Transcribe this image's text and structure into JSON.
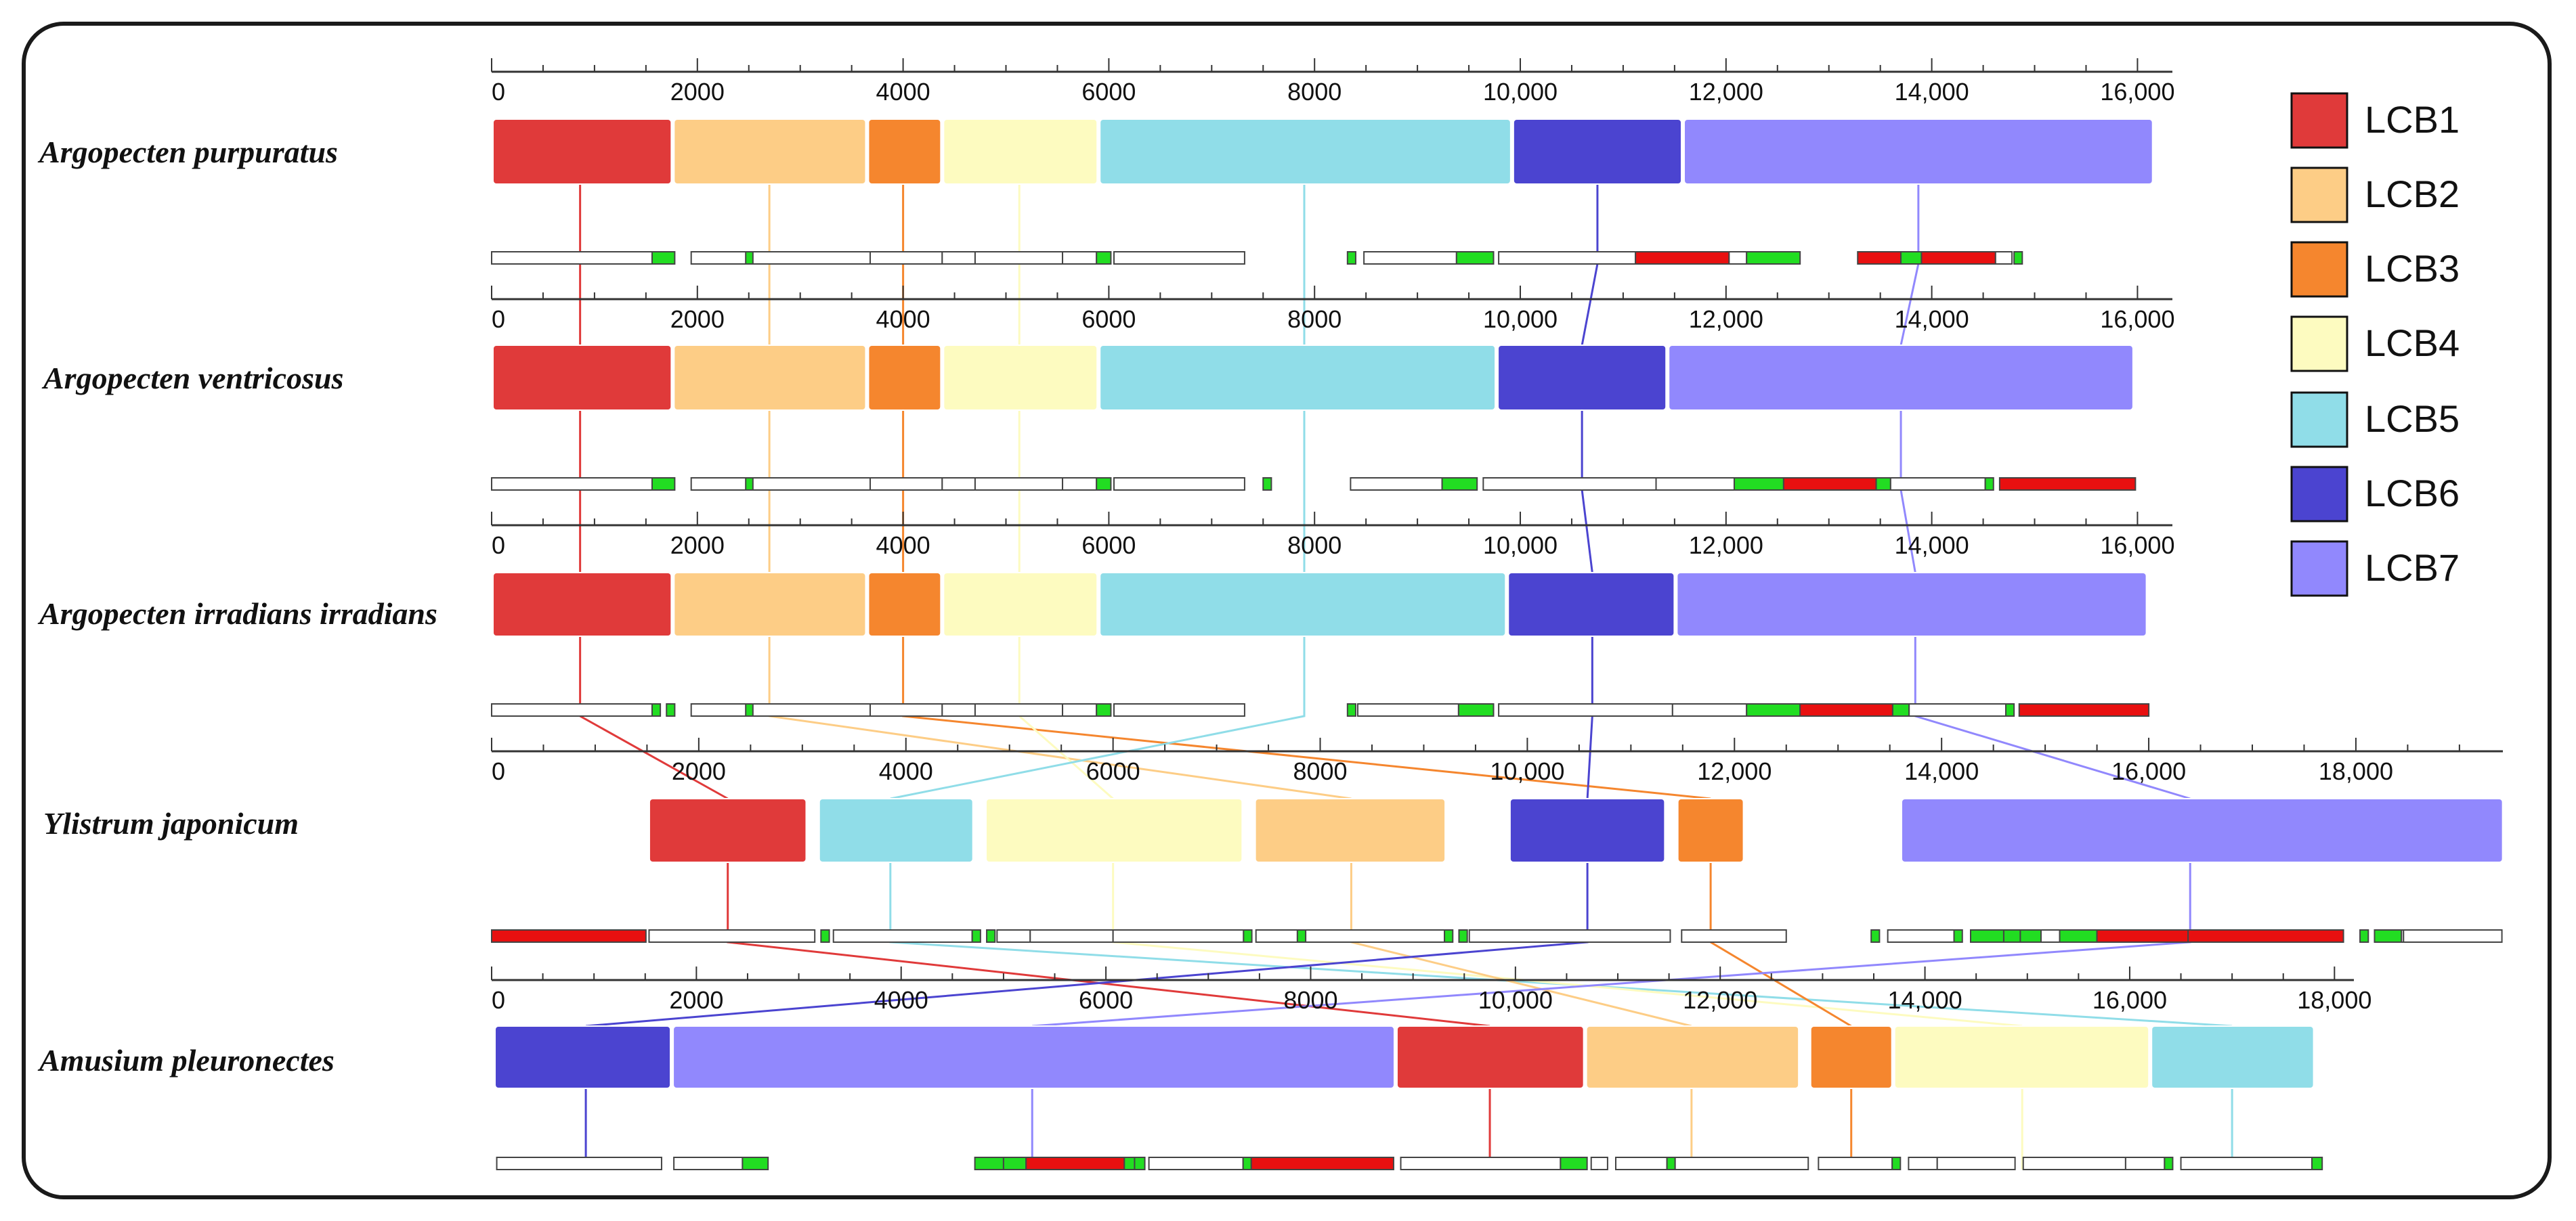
{
  "colors": {
    "LCB1": "#e03a3a",
    "LCB2": "#fdcd86",
    "LCB3": "#f5862e",
    "LCB4": "#fdfbc0",
    "LCB5": "#90dde8",
    "LCB6": "#4b44d0",
    "LCB7": "#9188fd",
    "gene_box_fill": "#ffffff",
    "gene_red": "#e81010",
    "gene_green": "#22dd22",
    "axis": "#333333"
  },
  "legend": [
    {
      "id": "LCB1",
      "label": "LCB1"
    },
    {
      "id": "LCB2",
      "label": "LCB2"
    },
    {
      "id": "LCB3",
      "label": "LCB3"
    },
    {
      "id": "LCB4",
      "label": "LCB4"
    },
    {
      "id": "LCB5",
      "label": "LCB5"
    },
    {
      "id": "LCB6",
      "label": "LCB6"
    },
    {
      "id": "LCB7",
      "label": "LCB7"
    }
  ],
  "genomes": [
    {
      "name": "Argopecten purpuratus",
      "axis_max": 16300,
      "ticks": [
        "0",
        "2000",
        "4000",
        "6000",
        "8000",
        "10,000",
        "12,000",
        "14,000",
        "16,000"
      ],
      "tick_values": [
        0,
        2000,
        4000,
        6000,
        8000,
        10000,
        12000,
        14000,
        16000
      ],
      "blocks": [
        {
          "lcb": "LCB1",
          "start": 0,
          "end": 1760
        },
        {
          "lcb": "LCB2",
          "start": 1760,
          "end": 3650
        },
        {
          "lcb": "LCB3",
          "start": 3650,
          "end": 4380
        },
        {
          "lcb": "LCB4",
          "start": 4380,
          "end": 5900
        },
        {
          "lcb": "LCB5",
          "start": 5900,
          "end": 9920
        },
        {
          "lcb": "LCB6",
          "start": 9920,
          "end": 11580
        },
        {
          "lcb": "LCB7",
          "start": 11580,
          "end": 16160
        }
      ],
      "genes": [
        [
          0,
          1560,
          "w"
        ],
        [
          1560,
          1780,
          "g"
        ],
        [
          1940,
          3680,
          "w"
        ],
        [
          2470,
          2540,
          "g"
        ],
        [
          3680,
          4380,
          "w"
        ],
        [
          4380,
          4700,
          "w"
        ],
        [
          4700,
          5550,
          "w"
        ],
        [
          5550,
          5880,
          "w"
        ],
        [
          5880,
          6020,
          "g"
        ],
        [
          6050,
          7320,
          "w"
        ],
        [
          8320,
          8400,
          "g"
        ],
        [
          8480,
          9380,
          "w"
        ],
        [
          9380,
          9740,
          "g"
        ],
        [
          9790,
          11120,
          "w"
        ],
        [
          11120,
          12030,
          "r"
        ],
        [
          12030,
          12200,
          "w"
        ],
        [
          12200,
          12720,
          "g"
        ],
        [
          13280,
          13700,
          "r"
        ],
        [
          13700,
          13900,
          "g"
        ],
        [
          13900,
          14620,
          "r"
        ],
        [
          14620,
          14780,
          "w"
        ],
        [
          14800,
          14880,
          "g"
        ]
      ],
      "anchors": {
        "LCB1": 860,
        "LCB2": 2700,
        "LCB3": 4000,
        "LCB4": 5130,
        "LCB5": 7900,
        "LCB6": 10750,
        "LCB7": 13870
      }
    },
    {
      "name": "Argopecten ventricosus",
      "axis_max": 16300,
      "ticks": [
        "0",
        "2000",
        "4000",
        "6000",
        "8000",
        "10,000",
        "12,000",
        "14,000",
        "16,000"
      ],
      "tick_values": [
        0,
        2000,
        4000,
        6000,
        8000,
        10000,
        12000,
        14000,
        16000
      ],
      "blocks": [
        {
          "lcb": "LCB1",
          "start": 0,
          "end": 1760
        },
        {
          "lcb": "LCB2",
          "start": 1760,
          "end": 3650
        },
        {
          "lcb": "LCB3",
          "start": 3650,
          "end": 4380
        },
        {
          "lcb": "LCB4",
          "start": 4380,
          "end": 5900
        },
        {
          "lcb": "LCB5",
          "start": 5900,
          "end": 9770
        },
        {
          "lcb": "LCB6",
          "start": 9770,
          "end": 11430
        },
        {
          "lcb": "LCB7",
          "start": 11430,
          "end": 15970
        }
      ],
      "genes": [
        [
          0,
          1560,
          "w"
        ],
        [
          1560,
          1780,
          "g"
        ],
        [
          1940,
          3680,
          "w"
        ],
        [
          2470,
          2540,
          "g"
        ],
        [
          3680,
          4380,
          "w"
        ],
        [
          4380,
          4700,
          "w"
        ],
        [
          4700,
          5550,
          "w"
        ],
        [
          5550,
          5880,
          "w"
        ],
        [
          5880,
          6020,
          "g"
        ],
        [
          6050,
          7320,
          "w"
        ],
        [
          7500,
          7580,
          "g"
        ],
        [
          8350,
          9240,
          "w"
        ],
        [
          9240,
          9580,
          "g"
        ],
        [
          9640,
          11320,
          "w"
        ],
        [
          11320,
          12080,
          "w"
        ],
        [
          12080,
          12560,
          "g"
        ],
        [
          12560,
          13460,
          "r"
        ],
        [
          13460,
          13600,
          "g"
        ],
        [
          13600,
          14520,
          "w"
        ],
        [
          14520,
          14600,
          "g"
        ],
        [
          14660,
          15980,
          "r"
        ]
      ],
      "anchors": {
        "LCB1": 860,
        "LCB2": 2700,
        "LCB3": 4000,
        "LCB4": 5130,
        "LCB5": 7900,
        "LCB6": 10600,
        "LCB7": 13700
      }
    },
    {
      "name": "Argopecten irradians irradians",
      "axis_max": 16300,
      "ticks": [
        "0",
        "2000",
        "4000",
        "6000",
        "8000",
        "10,000",
        "12,000",
        "14,000",
        "16,000"
      ],
      "tick_values": [
        0,
        2000,
        4000,
        6000,
        8000,
        10000,
        12000,
        14000,
        16000
      ],
      "blocks": [
        {
          "lcb": "LCB1",
          "start": 0,
          "end": 1760
        },
        {
          "lcb": "LCB2",
          "start": 1760,
          "end": 3650
        },
        {
          "lcb": "LCB3",
          "start": 3650,
          "end": 4380
        },
        {
          "lcb": "LCB4",
          "start": 4380,
          "end": 5900
        },
        {
          "lcb": "LCB5",
          "start": 5900,
          "end": 9870
        },
        {
          "lcb": "LCB6",
          "start": 9870,
          "end": 11510
        },
        {
          "lcb": "LCB7",
          "start": 11510,
          "end": 16100
        }
      ],
      "genes": [
        [
          0,
          1560,
          "w"
        ],
        [
          1560,
          1640,
          "g"
        ],
        [
          1700,
          1780,
          "g"
        ],
        [
          1940,
          3680,
          "w"
        ],
        [
          2470,
          2540,
          "g"
        ],
        [
          3680,
          4380,
          "w"
        ],
        [
          4380,
          4700,
          "w"
        ],
        [
          4700,
          5550,
          "w"
        ],
        [
          5550,
          5880,
          "w"
        ],
        [
          5880,
          6020,
          "g"
        ],
        [
          6050,
          7320,
          "w"
        ],
        [
          8320,
          8400,
          "g"
        ],
        [
          8420,
          9400,
          "w"
        ],
        [
          9400,
          9740,
          "g"
        ],
        [
          9790,
          11480,
          "w"
        ],
        [
          11480,
          12200,
          "w"
        ],
        [
          12200,
          12720,
          "g"
        ],
        [
          12720,
          13620,
          "r"
        ],
        [
          13620,
          13780,
          "g"
        ],
        [
          13780,
          14720,
          "w"
        ],
        [
          14720,
          14800,
          "g"
        ],
        [
          14850,
          16110,
          "r"
        ]
      ],
      "anchors": {
        "LCB1": 860,
        "LCB2": 2700,
        "LCB3": 4000,
        "LCB4": 5130,
        "LCB5": 7900,
        "LCB6": 10700,
        "LCB7": 13840
      }
    },
    {
      "name": "Ylistrum japonicum",
      "axis_max": 19380,
      "ticks": [
        "0",
        "2000",
        "4000",
        "6000",
        "8000",
        "10,000",
        "12,000",
        "14,000",
        "16,000",
        "18,000"
      ],
      "tick_values": [
        0,
        2000,
        4000,
        6000,
        8000,
        10000,
        12000,
        14000,
        16000,
        18000
      ],
      "blocks": [
        {
          "lcb": "LCB1",
          "start": 1510,
          "end": 3050
        },
        {
          "lcb": "LCB5",
          "start": 3150,
          "end": 4660
        },
        {
          "lcb": "LCB4",
          "start": 4760,
          "end": 7260
        },
        {
          "lcb": "LCB2",
          "start": 7360,
          "end": 9220
        },
        {
          "lcb": "LCB6",
          "start": 9820,
          "end": 11340
        },
        {
          "lcb": "LCB3",
          "start": 11440,
          "end": 12100
        },
        {
          "lcb": "LCB7",
          "start": 13600,
          "end": 19430
        }
      ],
      "genes": [
        [
          0,
          1490,
          "r"
        ],
        [
          1520,
          3120,
          "w"
        ],
        [
          3180,
          3260,
          "g"
        ],
        [
          3300,
          4640,
          "w"
        ],
        [
          4640,
          4720,
          "g"
        ],
        [
          4780,
          4860,
          "g"
        ],
        [
          4880,
          5200,
          "w"
        ],
        [
          5200,
          6000,
          "w"
        ],
        [
          6000,
          7260,
          "w"
        ],
        [
          7260,
          7340,
          "g"
        ],
        [
          7380,
          7780,
          "w"
        ],
        [
          7780,
          7860,
          "g"
        ],
        [
          7860,
          9200,
          "w"
        ],
        [
          9200,
          9280,
          "g"
        ],
        [
          9340,
          9420,
          "g"
        ],
        [
          9440,
          11380,
          "w"
        ],
        [
          11490,
          12500,
          "w"
        ],
        [
          13320,
          13400,
          "g"
        ],
        [
          13480,
          14120,
          "w"
        ],
        [
          14120,
          14200,
          "g"
        ],
        [
          14280,
          14600,
          "g"
        ],
        [
          14600,
          14760,
          "g"
        ],
        [
          14760,
          14960,
          "g"
        ],
        [
          14960,
          15140,
          "w"
        ],
        [
          15140,
          15500,
          "g"
        ],
        [
          15500,
          16380,
          "r"
        ],
        [
          16380,
          17880,
          "r"
        ],
        [
          18040,
          18120,
          "g"
        ],
        [
          18180,
          18440,
          "g"
        ],
        [
          18440,
          18460,
          "w"
        ],
        [
          18460,
          19410,
          "w"
        ]
      ],
      "anchors": {
        "LCB1": 2280,
        "LCB5": 3850,
        "LCB4": 6000,
        "LCB2": 8300,
        "LCB6": 10580,
        "LCB3": 11770,
        "LCB7": 16400
      }
    },
    {
      "name": "Amusium pleuronectes",
      "axis_max": 18150,
      "ticks": [
        "0",
        "2000",
        "4000",
        "6000",
        "8000",
        "10,000",
        "12,000",
        "14,000",
        "16,000",
        "18,000"
      ],
      "tick_values": [
        0,
        2000,
        4000,
        6000,
        8000,
        10000,
        12000,
        14000,
        16000,
        18000
      ],
      "blocks": [
        {
          "lcb": "LCB6",
          "start": 20,
          "end": 1760
        },
        {
          "lcb": "LCB7",
          "start": 1760,
          "end": 8830
        },
        {
          "lcb": "LCB1",
          "start": 8830,
          "end": 10680
        },
        {
          "lcb": "LCB2",
          "start": 10680,
          "end": 12780
        },
        {
          "lcb": "LCB3",
          "start": 12870,
          "end": 13690
        },
        {
          "lcb": "LCB4",
          "start": 13690,
          "end": 16200
        },
        {
          "lcb": "LCB5",
          "start": 16200,
          "end": 17810
        }
      ],
      "genes": [
        [
          50,
          1660,
          "w"
        ],
        [
          1780,
          2450,
          "w"
        ],
        [
          2450,
          2700,
          "g"
        ],
        [
          4720,
          5000,
          "g"
        ],
        [
          5000,
          5220,
          "g"
        ],
        [
          5220,
          6180,
          "r"
        ],
        [
          6180,
          6280,
          "g"
        ],
        [
          6280,
          6380,
          "g"
        ],
        [
          6420,
          7340,
          "w"
        ],
        [
          7340,
          7420,
          "g"
        ],
        [
          7420,
          8810,
          "r"
        ],
        [
          8880,
          10440,
          "w"
        ],
        [
          10440,
          10700,
          "g"
        ],
        [
          10740,
          10900,
          "w"
        ],
        [
          10980,
          11480,
          "w"
        ],
        [
          11480,
          11560,
          "g"
        ],
        [
          11560,
          12860,
          "w"
        ],
        [
          12960,
          13680,
          "w"
        ],
        [
          13680,
          13760,
          "g"
        ],
        [
          13840,
          14120,
          "w"
        ],
        [
          14120,
          14880,
          "w"
        ],
        [
          14960,
          15960,
          "w"
        ],
        [
          15960,
          16340,
          "w"
        ],
        [
          16340,
          16420,
          "g"
        ],
        [
          16500,
          17780,
          "w"
        ],
        [
          17780,
          17880,
          "g"
        ]
      ],
      "anchors": {
        "LCB6": 920,
        "LCB7": 5280,
        "LCB1": 9750,
        "LCB2": 11720,
        "LCB3": 13280,
        "LCB4": 14950,
        "LCB5": 17000
      }
    }
  ]
}
